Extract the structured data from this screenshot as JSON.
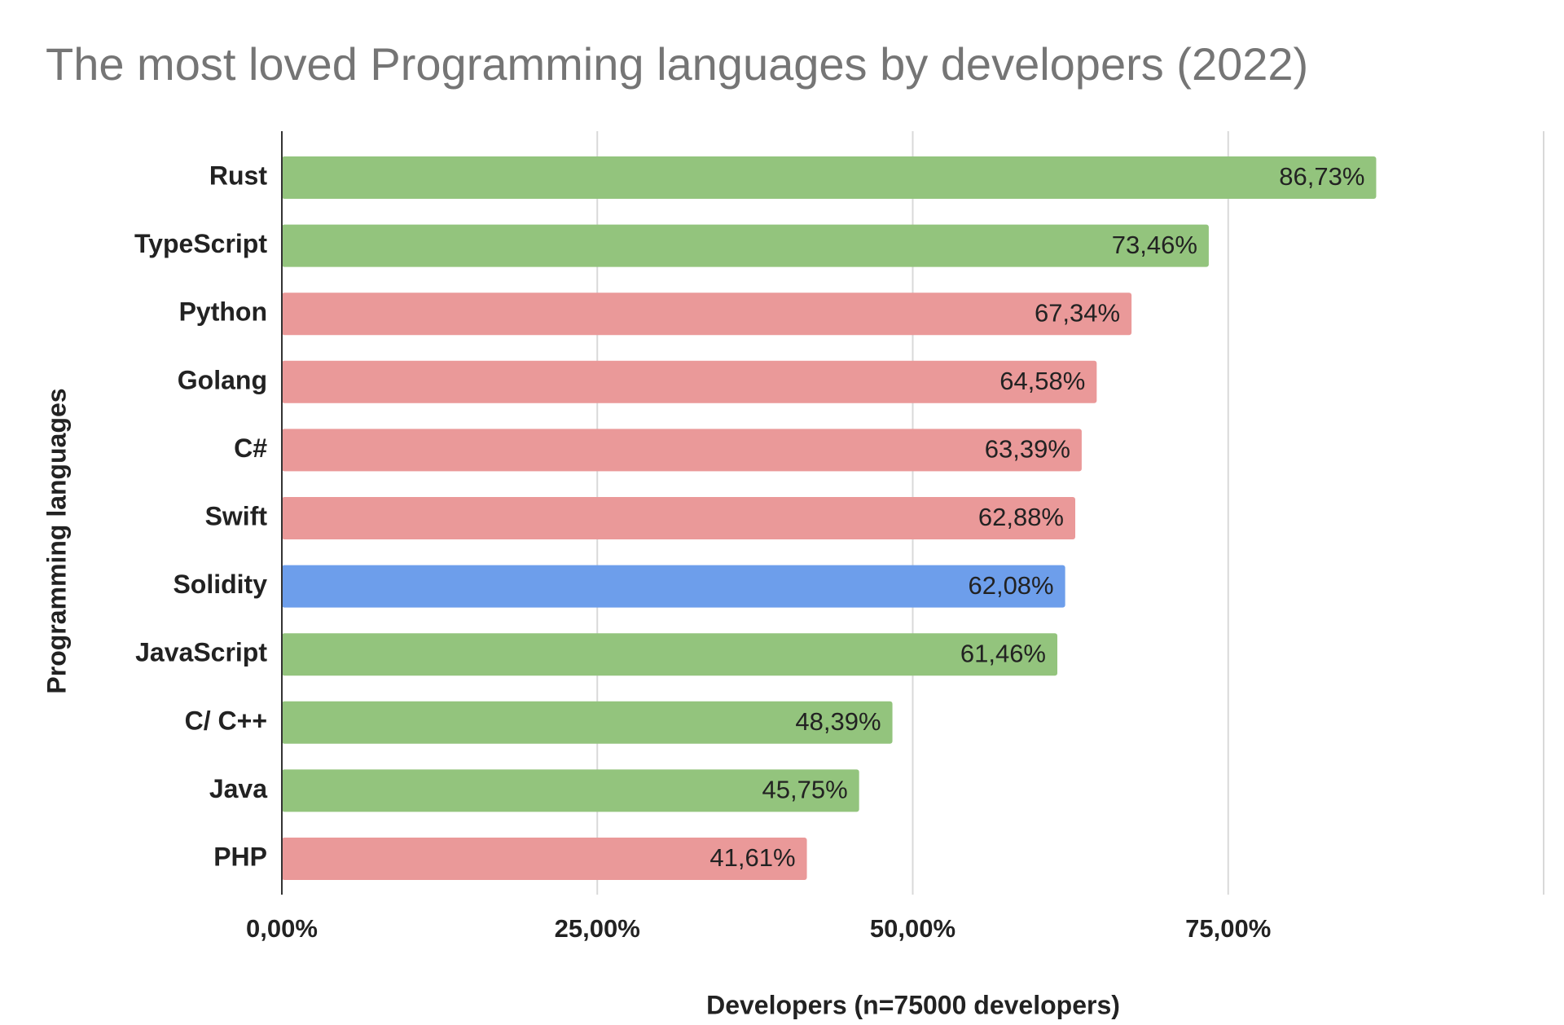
{
  "chart_data": {
    "type": "bar",
    "orientation": "horizontal",
    "title": "The most loved Programming languages by developers (2022)",
    "x_label": "Developers (n=75000 developers)",
    "y_label": "Programming languages",
    "categories": [
      "Rust",
      "TypeScript",
      "Python",
      "Golang",
      "C#",
      "Swift",
      "Solidity",
      "JavaScript",
      "C/ C++",
      "Java",
      "PHP"
    ],
    "values": [
      86.73,
      73.46,
      67.34,
      64.58,
      63.39,
      62.88,
      62.08,
      61.46,
      48.39,
      45.75,
      41.61
    ],
    "value_labels": [
      "86,73%",
      "73,46%",
      "67,34%",
      "64,58%",
      "63,39%",
      "62,88%",
      "62,08%",
      "61,46%",
      "48,39%",
      "45,75%",
      "41,61%"
    ],
    "colors": [
      "#93c47d",
      "#93c47d",
      "#ea9999",
      "#ea9999",
      "#ea9999",
      "#ea9999",
      "#6d9eeb",
      "#93c47d",
      "#93c47d",
      "#93c47d",
      "#ea9999"
    ],
    "xlim": [
      0,
      100
    ],
    "xticks": [
      {
        "value": 0,
        "label": "0,00%"
      },
      {
        "value": 25,
        "label": "25,00%"
      },
      {
        "value": 50,
        "label": "50,00%"
      },
      {
        "value": 75,
        "label": "75,00%"
      }
    ],
    "grid": true
  }
}
